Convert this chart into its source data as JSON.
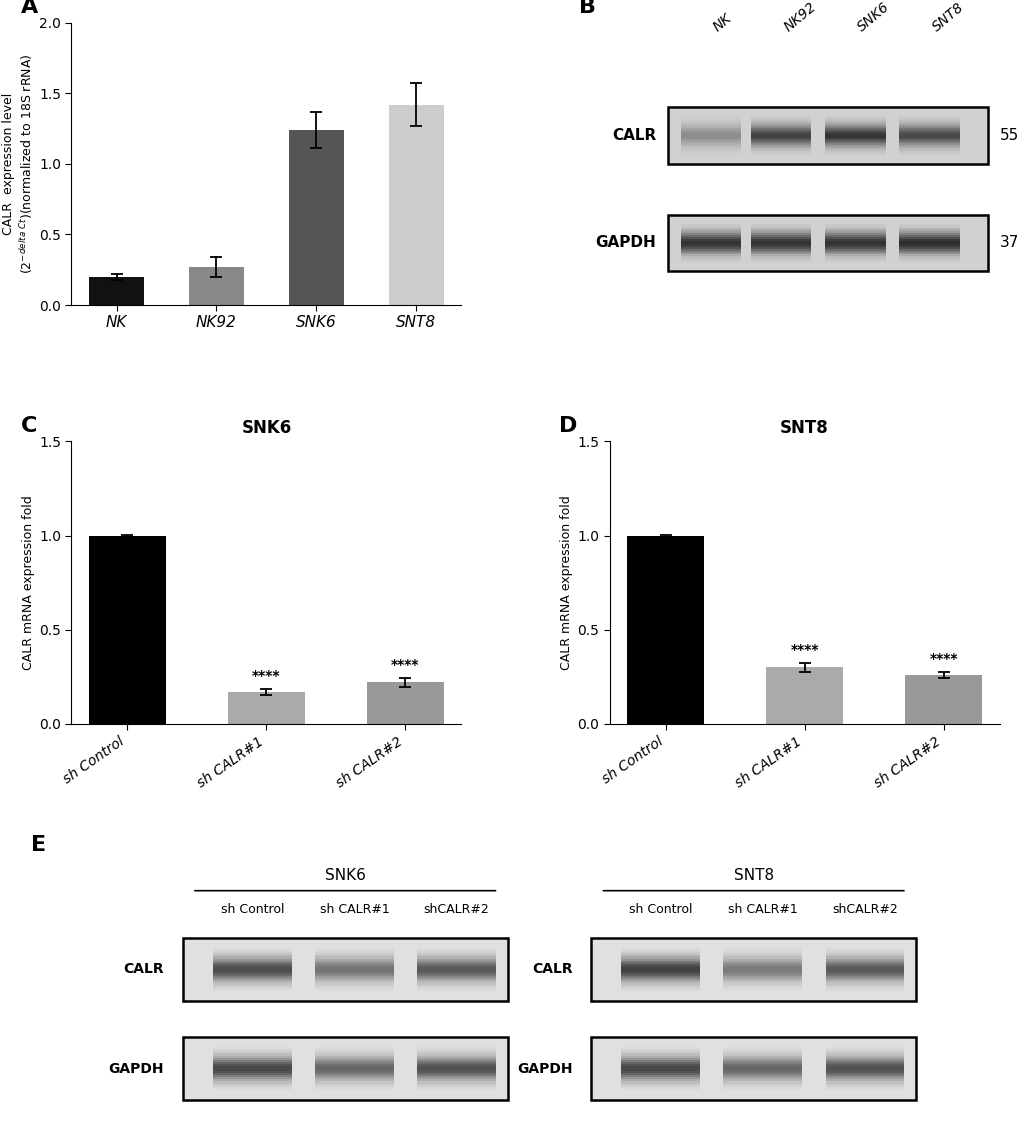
{
  "panel_A": {
    "categories": [
      "NK",
      "NK92",
      "SNK6",
      "SNT8"
    ],
    "values": [
      0.2,
      0.27,
      1.24,
      1.42
    ],
    "errors": [
      0.02,
      0.07,
      0.13,
      0.15
    ],
    "colors": [
      "#111111",
      "#888888",
      "#555555",
      "#cccccc"
    ],
    "ylim": [
      0.0,
      2.0
    ],
    "yticks": [
      0.0,
      0.5,
      1.0,
      1.5,
      2.0
    ],
    "ylabel": "CALR  expression level\n$(2^{-delta\\ Ct})$(normalized to 18S rRNA)"
  },
  "panel_C": {
    "title": "SNK6",
    "categories": [
      "sh Control",
      "sh CALR#1",
      "sh CALR#2"
    ],
    "values": [
      1.0,
      0.17,
      0.22
    ],
    "errors": [
      0.005,
      0.015,
      0.025
    ],
    "colors": [
      "#000000",
      "#aaaaaa",
      "#999999"
    ],
    "ylabel": "CALR mRNA expression fold",
    "ylim": [
      0.0,
      1.5
    ],
    "yticks": [
      0.0,
      0.5,
      1.0,
      1.5
    ],
    "sig_labels": [
      "",
      "****",
      "****"
    ]
  },
  "panel_D": {
    "title": "SNT8",
    "categories": [
      "sh Control",
      "sh CALR#1",
      "sh CALR#2"
    ],
    "values": [
      1.0,
      0.3,
      0.26
    ],
    "errors": [
      0.005,
      0.025,
      0.015
    ],
    "colors": [
      "#000000",
      "#aaaaaa",
      "#999999"
    ],
    "ylabel": "CALR mRNA expression fold",
    "ylim": [
      0.0,
      1.5
    ],
    "yticks": [
      0.0,
      0.5,
      1.0,
      1.5
    ],
    "sig_labels": [
      "",
      "****",
      "****"
    ]
  },
  "background_color": "#ffffff"
}
